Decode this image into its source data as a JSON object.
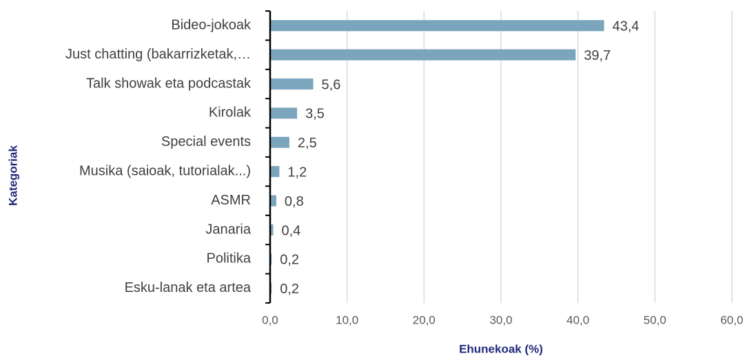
{
  "chart_data": {
    "type": "bar",
    "orientation": "horizontal",
    "categories": [
      "Bideo-jokoak",
      "Just chatting (bakarrizketak,…",
      "Talk showak eta podcastak",
      "Kirolak",
      "Special events",
      "Musika (saioak, tutorialak...)",
      "ASMR",
      "Janaria",
      "Politika",
      "Esku-lanak eta artea"
    ],
    "values": [
      43.4,
      39.7,
      5.6,
      3.5,
      2.5,
      1.2,
      0.8,
      0.4,
      0.2,
      0.2
    ],
    "value_labels": [
      "43,4",
      "39,7",
      "5,6",
      "3,5",
      "2,5",
      "1,2",
      "0,8",
      "0,4",
      "0,2",
      "0,2"
    ],
    "color": "#7aa5bc",
    "xlim": [
      0,
      60
    ],
    "xticks": [
      {
        "value": 0,
        "label": "0,0"
      },
      {
        "value": 10,
        "label": "10,0"
      },
      {
        "value": 20,
        "label": "20,0"
      },
      {
        "value": 30,
        "label": "30,0"
      },
      {
        "value": 40,
        "label": "40,0"
      },
      {
        "value": 50,
        "label": "50,0"
      },
      {
        "value": 60,
        "label": "60,0"
      }
    ],
    "xlabel": "Ehunekoak (%)",
    "ylabel": "Kategoriak",
    "grid": true
  }
}
